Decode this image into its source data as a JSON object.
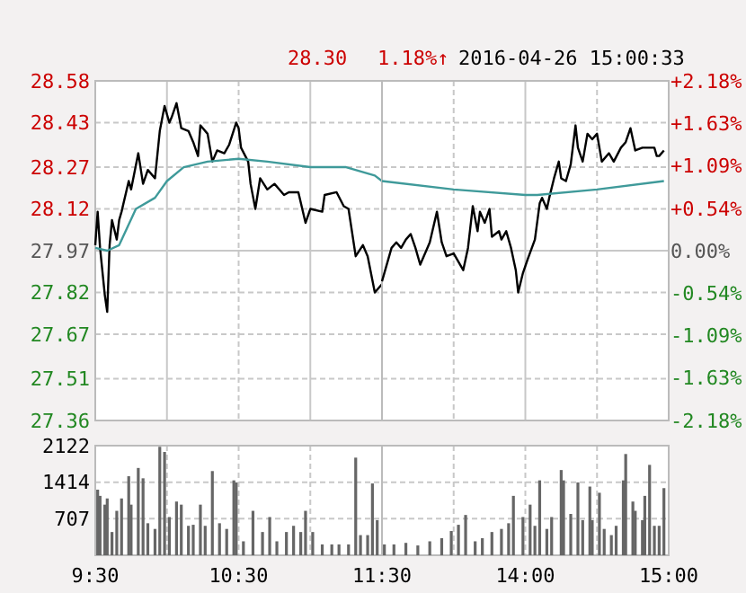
{
  "chart_data": [
    {
      "type": "line",
      "annotations": [
        "28.30",
        "1.18%↑",
        "2016-04-26 15:00:33"
      ],
      "tick_labels": "y",
      "xlim": [
        "2016-04-26T09:30",
        "2016-04-26T11:30"
      ],
      "xticks": [
        {
          "value": "2016-04-26T09:30",
          "label": null
        },
        {
          "value": "2016-04-26T10:00",
          "label": null
        },
        {
          "value": "2016-04-26T10:30",
          "label": null
        },
        {
          "value": "2016-04-26T11:00",
          "label": null
        },
        {
          "value": "2016-04-26T11:30",
          "label": null
        }
      ],
      "ylim": [
        27.36,
        28.58
      ],
      "yticks": [
        27.36,
        27.51,
        27.67,
        27.82,
        27.97,
        28.12,
        28.27,
        28.43,
        28.58
      ],
      "grid": true,
      "series": [
        {
          "color": "#000000",
          "x": [
            "2016-04-26T09:30",
            "2016-04-26T09:31",
            "2016-04-26T09:32",
            "2016-04-26T09:34",
            "2016-04-26T09:35",
            "2016-04-26T09:36",
            "2016-04-26T09:37",
            "2016-04-26T09:39",
            "2016-04-26T09:40",
            "2016-04-26T09:41",
            "2016-04-26T09:44",
            "2016-04-26T09:45",
            "2016-04-26T09:48",
            "2016-04-26T09:50",
            "2016-04-26T09:52",
            "2016-04-26T09:55",
            "2016-04-26T09:57",
            "2016-04-26T09:59",
            "2016-04-26T10:01",
            "2016-04-26T10:02",
            "2016-04-26T10:04",
            "2016-04-26T10:06",
            "2016-04-26T10:09",
            "2016-04-26T10:11",
            "2016-04-26T10:13",
            "2016-04-26T10:14",
            "2016-04-26T10:17",
            "2016-04-26T10:19",
            "2016-04-26T10:21",
            "2016-04-26T10:24",
            "2016-04-26T10:26",
            "2016-04-26T10:29",
            "2016-04-26T10:30",
            "2016-04-26T10:31",
            "2016-04-26T10:34",
            "2016-04-26T10:35",
            "2016-04-26T10:37",
            "2016-04-26T10:39",
            "2016-04-26T10:42",
            "2016-04-26T10:45",
            "2016-04-26T10:47",
            "2016-04-26T10:49",
            "2016-04-26T10:51",
            "2016-04-26T10:55",
            "2016-04-26T10:58",
            "2016-04-26T11:00",
            "2016-04-26T11:05",
            "2016-04-26T11:06",
            "2016-04-26T11:11",
            "2016-04-26T11:14",
            "2016-04-26T11:16",
            "2016-04-26T11:19",
            "2016-04-26T11:22",
            "2016-04-26T11:24",
            "2016-04-26T11:27",
            "2016-04-26T11:30"
          ],
          "values": [
            27.99,
            28.11,
            27.98,
            27.81,
            27.75,
            27.99,
            28.08,
            28.01,
            28.08,
            28.11,
            28.22,
            28.19,
            28.32,
            28.21,
            28.26,
            28.23,
            28.4,
            28.49,
            28.43,
            28.45,
            28.5,
            28.41,
            28.4,
            28.36,
            28.31,
            28.42,
            28.39,
            28.29,
            28.33,
            28.32,
            28.35,
            28.43,
            28.41,
            28.34,
            28.29,
            28.21,
            28.12,
            28.23,
            28.19,
            28.21,
            28.19,
            28.17,
            28.18,
            28.18,
            28.07,
            28.12,
            28.11,
            28.17,
            28.18,
            28.13,
            28.12,
            27.95,
            27.99,
            27.95,
            27.82,
            27.85
          ]
        },
        {
          "color": "#3f9a9a",
          "x": [
            "2016-04-26T09:30",
            "2016-04-26T09:35",
            "2016-04-26T09:40",
            "2016-04-26T09:47",
            "2016-04-26T09:55",
            "2016-04-26T10:00",
            "2016-04-26T10:07",
            "2016-04-26T10:17",
            "2016-04-26T10:30",
            "2016-04-26T10:42",
            "2016-04-26T11:00",
            "2016-04-26T11:15",
            "2016-04-26T11:27",
            "2016-04-26T11:30"
          ],
          "values": [
            27.98,
            27.97,
            27.99,
            28.12,
            28.16,
            28.22,
            28.27,
            28.29,
            28.3,
            28.29,
            28.27,
            28.27,
            28.24,
            28.22
          ]
        }
      ]
    },
    {
      "type": "line",
      "tick_labels": false,
      "xlim": [
        "2016-04-26T13:00",
        "2016-04-26T15:00"
      ],
      "xticks": [
        {
          "value": "2016-04-26T13:00",
          "label": null
        },
        {
          "value": "2016-04-26T13:30",
          "label": null
        },
        {
          "value": "2016-04-26T14:00",
          "label": null
        },
        {
          "value": "2016-04-26T14:30",
          "label": null
        },
        {
          "value": "2016-04-26T15:00",
          "label": null
        }
      ],
      "ylim": [
        27.36,
        28.58
      ],
      "yticks": [
        27.36,
        27.51,
        27.67,
        27.82,
        27.97,
        28.12,
        28.27,
        28.43,
        28.58
      ],
      "y2lim": [
        -2.18,
        2.18
      ],
      "y2ticks": [
        {
          "value": -2.18,
          "label": "-2.18%"
        },
        {
          "value": -1.63,
          "label": "-1.63%"
        },
        {
          "value": -1.09,
          "label": "-1.09%"
        },
        {
          "value": -0.54,
          "label": "-0.54%"
        },
        {
          "value": 0,
          "label": "0.00%"
        },
        {
          "value": 0.54,
          "label": "+0.54%"
        },
        {
          "value": 1.09,
          "label": "+1.09%"
        },
        {
          "value": 1.63,
          "label": "+1.63%"
        },
        {
          "value": 2.18,
          "label": "+2.18%"
        }
      ],
      "grid": true,
      "series": [
        {
          "color": "#000000",
          "x": [
            "2016-04-26T13:00",
            "2016-04-26T13:04",
            "2016-04-26T13:06",
            "2016-04-26T13:08",
            "2016-04-26T13:10",
            "2016-04-26T13:12",
            "2016-04-26T13:14",
            "2016-04-26T13:16",
            "2016-04-26T13:19",
            "2016-04-26T13:20",
            "2016-04-26T13:23",
            "2016-04-26T13:25",
            "2016-04-26T13:27",
            "2016-04-26T13:30",
            "2016-04-26T13:32",
            "2016-04-26T13:34",
            "2016-04-26T13:36",
            "2016-04-26T13:38",
            "2016-04-26T13:40",
            "2016-04-26T13:41",
            "2016-04-26T13:43",
            "2016-04-26T13:45",
            "2016-04-26T13:46",
            "2016-04-26T13:49",
            "2016-04-26T13:50",
            "2016-04-26T13:52",
            "2016-04-26T13:54",
            "2016-04-26T13:56",
            "2016-04-26T13:57",
            "2016-04-26T13:59",
            "2016-04-26T14:01",
            "2016-04-26T14:04",
            "2016-04-26T14:06",
            "2016-04-26T14:07",
            "2016-04-26T14:09",
            "2016-04-26T14:10",
            "2016-04-26T14:12",
            "2016-04-26T14:14",
            "2016-04-26T14:15",
            "2016-04-26T14:17",
            "2016-04-26T14:19",
            "2016-04-26T14:21",
            "2016-04-26T14:22",
            "2016-04-26T14:24",
            "2016-04-26T14:26",
            "2016-04-26T14:28",
            "2016-04-26T14:30",
            "2016-04-26T14:32",
            "2016-04-26T14:35",
            "2016-04-26T14:37",
            "2016-04-26T14:40",
            "2016-04-26T14:42",
            "2016-04-26T14:44",
            "2016-04-26T14:46",
            "2016-04-26T14:49",
            "2016-04-26T14:51",
            "2016-04-26T14:54",
            "2016-04-26T14:55",
            "2016-04-26T14:56",
            "2016-04-26T14:58"
          ],
          "values": [
            27.86,
            27.98,
            28.0,
            27.98,
            28.01,
            28.03,
            27.98,
            27.92,
            27.98,
            28.0,
            28.11,
            28.0,
            27.95,
            27.96,
            27.93,
            27.9,
            27.98,
            28.13,
            28.04,
            28.11,
            28.07,
            28.12,
            28.02,
            28.04,
            28.01,
            28.04,
            27.98,
            27.9,
            27.82,
            27.89,
            27.94,
            28.01,
            28.14,
            28.16,
            28.12,
            28.16,
            28.23,
            28.29,
            28.23,
            28.22,
            28.28,
            28.42,
            28.34,
            28.29,
            28.39,
            28.37,
            28.39,
            28.29,
            28.32,
            28.29,
            28.34,
            28.36,
            28.41,
            28.33,
            28.34,
            28.34,
            28.34,
            28.31,
            28.31,
            28.33
          ]
        },
        {
          "color": "#3f9a9a",
          "x": [
            "2016-04-26T13:00",
            "2016-04-26T13:30",
            "2016-04-26T14:00",
            "2016-04-26T14:05",
            "2016-04-26T14:30",
            "2016-04-26T14:58"
          ],
          "values": [
            28.22,
            28.19,
            28.17,
            28.17,
            28.19,
            28.22
          ]
        }
      ]
    },
    {
      "type": "bar",
      "xlim": [
        "2016-04-26T09:30",
        "2016-04-26T11:30"
      ],
      "xticks": [
        {
          "value": "2016-04-26T09:30",
          "label": "9:30"
        },
        {
          "value": "2016-04-26T10:00",
          "label": null
        },
        {
          "value": "2016-04-26T10:30",
          "label": "10:30"
        },
        {
          "value": "2016-04-26T11:00",
          "label": null
        },
        {
          "value": "2016-04-26T11:30",
          "label": "11:30"
        }
      ],
      "ylim": [
        0,
        2122
      ],
      "yticks": [
        707,
        1414,
        2122
      ],
      "grid": true,
      "color": "#666666",
      "x": [
        "2016-04-26T09:31",
        "2016-04-26T09:32",
        "2016-04-26T09:34",
        "2016-04-26T09:35",
        "2016-04-26T09:37",
        "2016-04-26T09:39",
        "2016-04-26T09:41",
        "2016-04-26T09:44",
        "2016-04-26T09:45",
        "2016-04-26T09:48",
        "2016-04-26T09:50",
        "2016-04-26T09:52",
        "2016-04-26T09:55",
        "2016-04-26T09:57",
        "2016-04-26T09:59",
        "2016-04-26T10:01",
        "2016-04-26T10:04",
        "2016-04-26T10:06",
        "2016-04-26T10:09",
        "2016-04-26T10:11",
        "2016-04-26T10:14",
        "2016-04-26T10:16",
        "2016-04-26T10:19",
        "2016-04-26T10:22",
        "2016-04-26T10:25",
        "2016-04-26T10:28",
        "2016-04-26T10:29",
        "2016-04-26T10:32",
        "2016-04-26T10:36",
        "2016-04-26T10:40",
        "2016-04-26T10:43",
        "2016-04-26T10:46",
        "2016-04-26T10:50",
        "2016-04-26T10:53",
        "2016-04-26T10:56",
        "2016-04-26T10:58",
        "2016-04-26T11:01",
        "2016-04-26T11:05",
        "2016-04-26T11:09",
        "2016-04-26T11:12",
        "2016-04-26T11:16",
        "2016-04-26T11:19",
        "2016-04-26T11:21",
        "2016-04-26T11:24",
        "2016-04-26T11:26",
        "2016-04-26T11:28"
      ],
      "values": [
        1270,
        1150,
        980,
        1100,
        450,
        860,
        1100,
        1530,
        980,
        1690,
        1490,
        620,
        510,
        2100,
        2000,
        740,
        1040,
        980,
        570,
        590,
        980,
        570,
        1630,
        620,
        510,
        1450,
        1410,
        270,
        860,
        450,
        740,
        270,
        450,
        570,
        450,
        860,
        450,
        210,
        210,
        210,
        210,
        1890,
        390,
        390,
        1390,
        680
      ]
    },
    {
      "type": "bar",
      "tick_labels": "x",
      "xlim": [
        "2016-04-26T13:00",
        "2016-04-26T15:00"
      ],
      "xticks": [
        {
          "value": "2016-04-26T13:00",
          "label": null
        },
        {
          "value": "2016-04-26T13:30",
          "label": null
        },
        {
          "value": "2016-04-26T14:00",
          "label": "14:00"
        },
        {
          "value": "2016-04-26T14:30",
          "label": null
        },
        {
          "value": "2016-04-26T15:00",
          "label": "15:00"
        }
      ],
      "ylim": [
        0,
        2122
      ],
      "yticks": [
        707,
        1414,
        2122
      ],
      "grid": true,
      "color": "#666666",
      "x": [
        "2016-04-26T13:01",
        "2016-04-26T13:05",
        "2016-04-26T13:10",
        "2016-04-26T13:15",
        "2016-04-26T13:20",
        "2016-04-26T13:25",
        "2016-04-26T13:29",
        "2016-04-26T13:32",
        "2016-04-26T13:35",
        "2016-04-26T13:39",
        "2016-04-26T13:42",
        "2016-04-26T13:46",
        "2016-04-26T13:50",
        "2016-04-26T13:53",
        "2016-04-26T13:55",
        "2016-04-26T13:59",
        "2016-04-26T14:02",
        "2016-04-26T14:04",
        "2016-04-26T14:06",
        "2016-04-26T14:09",
        "2016-04-26T14:11",
        "2016-04-26T14:15",
        "2016-04-26T14:16",
        "2016-04-26T14:19",
        "2016-04-26T14:22",
        "2016-04-26T14:24",
        "2016-04-26T14:27",
        "2016-04-26T14:28",
        "2016-04-26T14:31",
        "2016-04-26T14:33",
        "2016-04-26T14:36",
        "2016-04-26T14:38",
        "2016-04-26T14:41",
        "2016-04-26T14:42",
        "2016-04-26T14:45",
        "2016-04-26T14:46",
        "2016-04-26T14:49",
        "2016-04-26T14:50",
        "2016-04-26T14:52",
        "2016-04-26T14:54",
        "2016-04-26T14:56",
        "2016-04-26T14:58"
      ],
      "values": [
        210,
        210,
        240,
        190,
        270,
        330,
        470,
        590,
        780,
        270,
        330,
        450,
        510,
        620,
        1150,
        740,
        980,
        570,
        1450,
        510,
        740,
        1650,
        1450,
        800,
        1410,
        680,
        1330,
        680,
        1210,
        510,
        390,
        570,
        1450,
        1960,
        1040,
        860,
        680,
        1150,
        1750,
        570,
        570,
        1300
      ]
    }
  ]
}
